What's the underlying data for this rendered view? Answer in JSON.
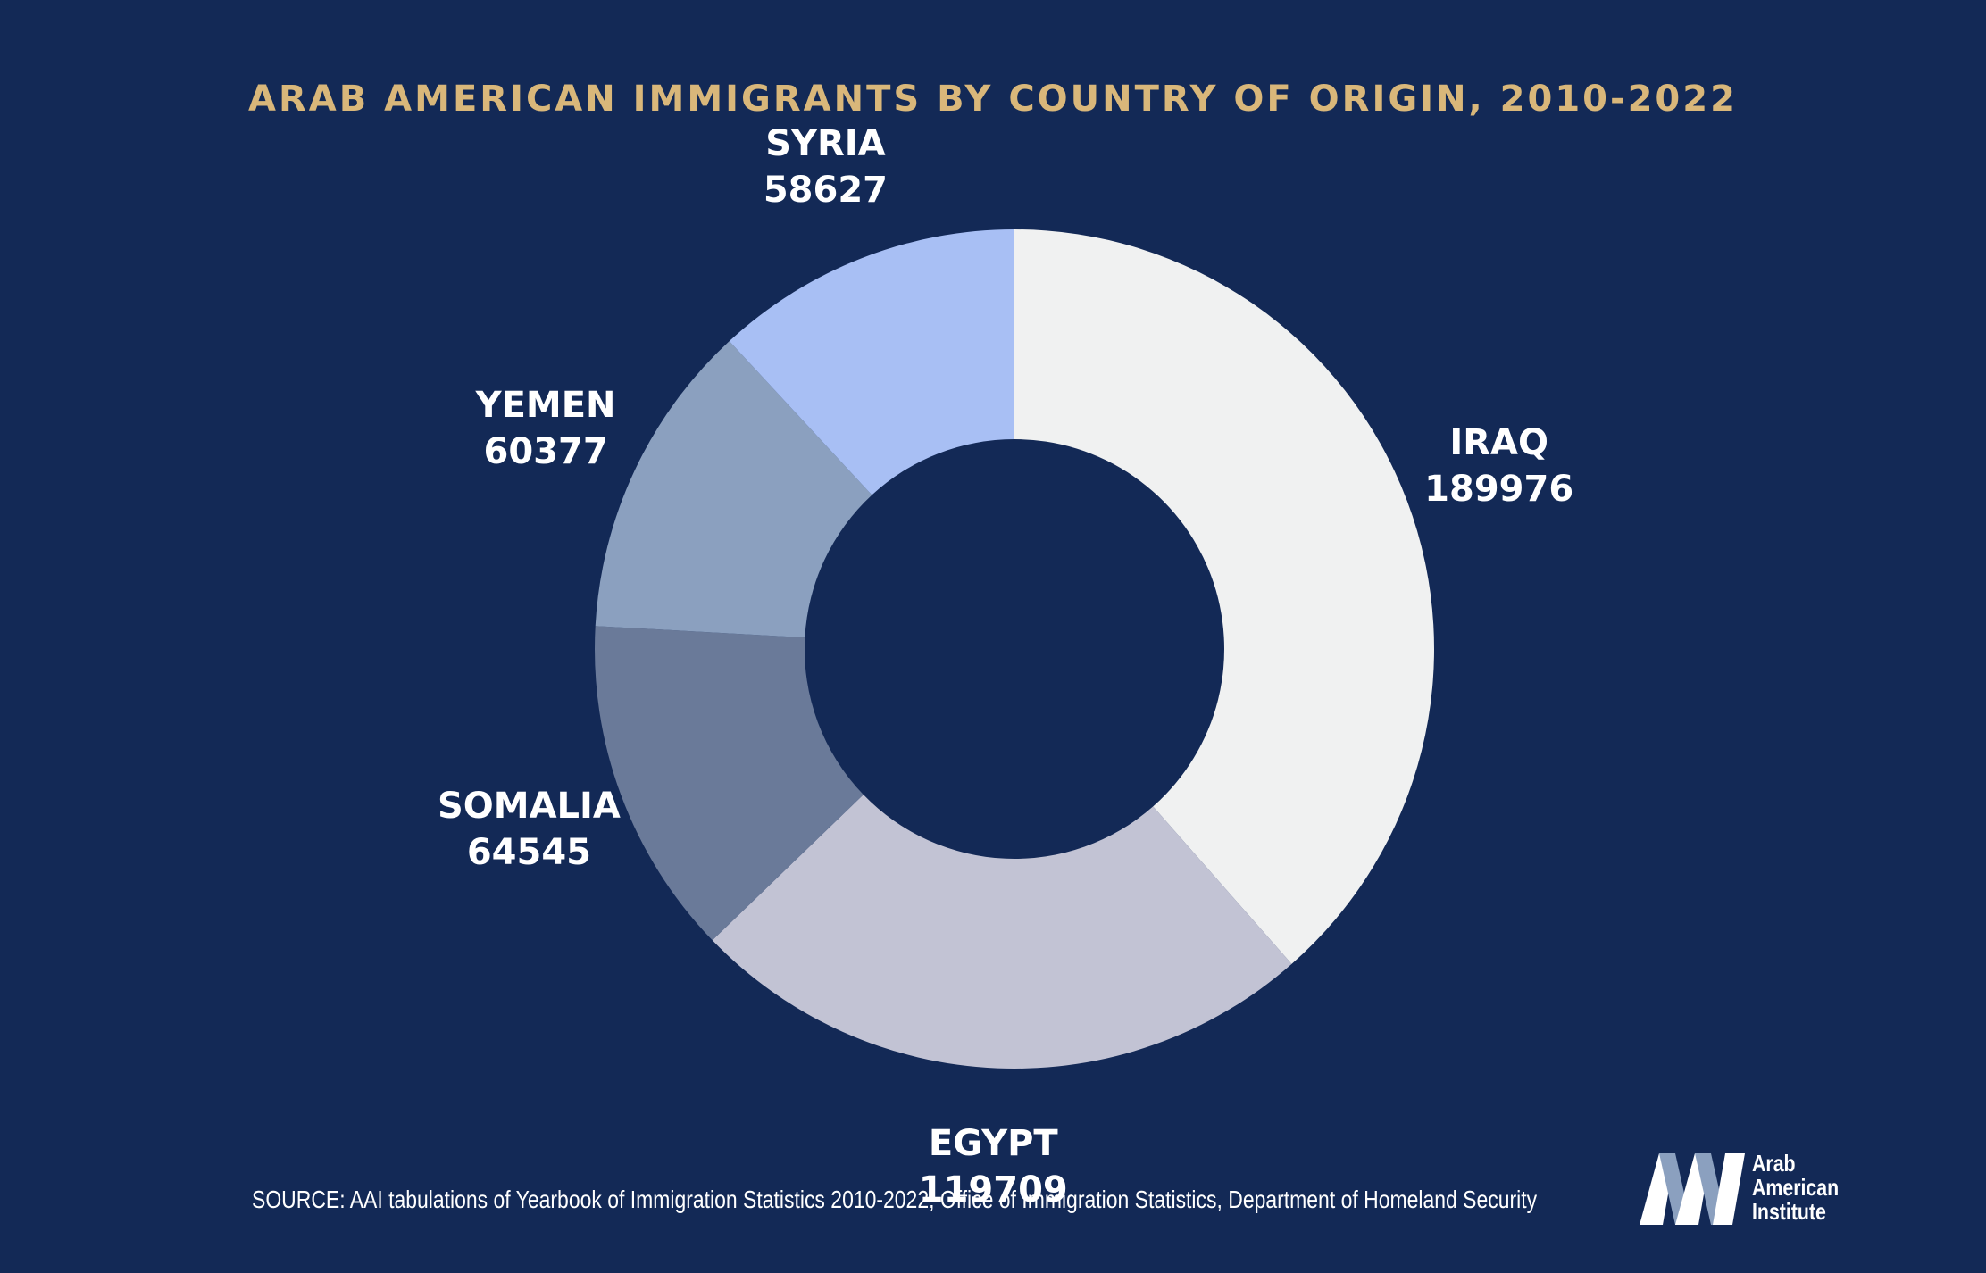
{
  "chart_data": {
    "type": "pie",
    "variant": "donut",
    "title": "ARAB AMERICAN IMMIGRANTS BY COUNTRY OF ORIGIN, 2010-2022",
    "categories": [
      "IRAQ",
      "EGYPT",
      "SOMALIA",
      "YEMEN",
      "SYRIA"
    ],
    "values": [
      189976,
      119709,
      64545,
      60377,
      58627
    ],
    "value_labels": [
      "189976",
      "119709",
      "64545",
      "60377",
      "58627"
    ],
    "colors": [
      "#f0f1f1",
      "#c2c3d4",
      "#6a7a99",
      "#8ba0bf",
      "#a8bff4"
    ],
    "start_angle": "12 o'clock",
    "direction": "clockwise",
    "legend": "none",
    "source": "SOURCE: AAI tabulations of Yearbook of Immigration Statistics 2010-2022, Office of Immigration Statistics, Department of Homeland Security"
  },
  "background_color": "#132956",
  "title_color": "#d9b77a",
  "logo": {
    "text_lines": [
      "Arab",
      "American",
      "Institute"
    ],
    "mark": "AAI"
  }
}
